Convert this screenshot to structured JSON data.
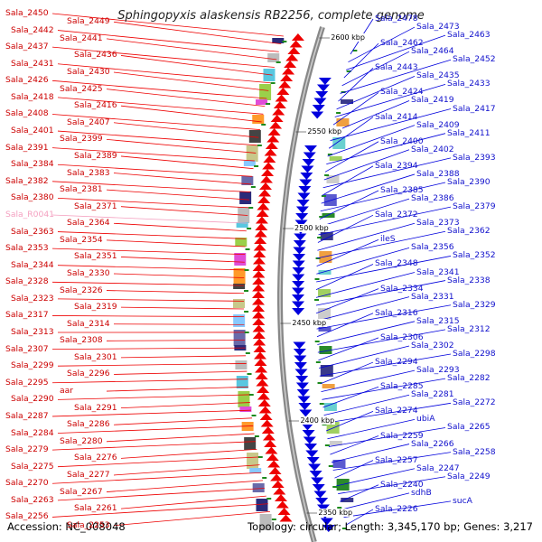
{
  "title": "Sphingopyxis alaskensis RB2256, complete genome",
  "footer": {
    "accession": "Accession: NC_008048",
    "summary": "Topology: circular; Length: 3,345,170 bp; Genes: 3,217"
  },
  "kbp_marks": [
    "2600 kbp",
    "2550 kbp",
    "2500 kbp",
    "2450 kbp",
    "2400 kbp",
    "2350 kbp"
  ],
  "colors": {
    "forward": "#ee0000",
    "reverse": "#0000dd",
    "rna": "#f4a0c0",
    "backbone": "#888888"
  },
  "left_labels": [
    "Sala_2450",
    "Sala_2449",
    "Sala_2442",
    "Sala_2441",
    "Sala_2437",
    "Sala_2436",
    "Sala_2431",
    "Sala_2430",
    "Sala_2426",
    "Sala_2425",
    "Sala_2418",
    "Sala_2416",
    "Sala_2408",
    "Sala_2407",
    "Sala_2401",
    "Sala_2399",
    "Sala_2391",
    "Sala_2389",
    "Sala_2384",
    "Sala_2383",
    "Sala_2382",
    "Sala_2381",
    "Sala_2380",
    "Sala_2371",
    "Sala_R0041",
    "Sala_2364",
    "Sala_2363",
    "Sala_2354",
    "Sala_2353",
    "Sala_2351",
    "Sala_2344",
    "Sala_2330",
    "Sala_2328",
    "Sala_2326",
    "Sala_2323",
    "Sala_2319",
    "Sala_2317",
    "Sala_2314",
    "Sala_2313",
    "Sala_2308",
    "Sala_2307",
    "Sala_2301",
    "Sala_2299",
    "Sala_2296",
    "Sala_2295",
    "aar",
    "Sala_2290",
    "Sala_2291",
    "Sala_2287",
    "Sala_2286",
    "Sala_2284",
    "Sala_2280",
    "Sala_2279",
    "Sala_2276",
    "Sala_2275",
    "Sala_2277",
    "Sala_2270",
    "Sala_2267",
    "Sala_2263",
    "Sala_2261",
    "Sala_2256",
    "Sala_2253"
  ],
  "right_labels": [
    "Sala_2478",
    "Sala_2473",
    "Sala_2463",
    "Sala_2462",
    "Sala_2464",
    "Sala_2452",
    "Sala_2443",
    "Sala_2435",
    "Sala_2433",
    "Sala_2424",
    "Sala_2419",
    "Sala_2417",
    "Sala_2414",
    "Sala_2409",
    "Sala_2411",
    "Sala_2400",
    "Sala_2402",
    "Sala_2393",
    "Sala_2394",
    "Sala_2388",
    "Sala_2390",
    "Sala_2385",
    "Sala_2386",
    "Sala_2379",
    "Sala_2372",
    "Sala_2373",
    "Sala_2362",
    "ileS",
    "Sala_2356",
    "Sala_2352",
    "Sala_2348",
    "Sala_2341",
    "Sala_2338",
    "Sala_2334",
    "Sala_2331",
    "Sala_2329",
    "Sala_2316",
    "Sala_2315",
    "Sala_2312",
    "Sala_2306",
    "Sala_2302",
    "Sala_2298",
    "Sala_2294",
    "Sala_2293",
    "Sala_2282",
    "Sala_2285",
    "Sala_2281",
    "Sala_2272",
    "Sala_2274",
    "ubiA",
    "Sala_2265",
    "Sala_2259",
    "Sala_2266",
    "Sala_2258",
    "Sala_2257",
    "Sala_2247",
    "Sala_2249",
    "Sala_2240",
    "sdhB",
    "sucA",
    "Sala_2226"
  ]
}
